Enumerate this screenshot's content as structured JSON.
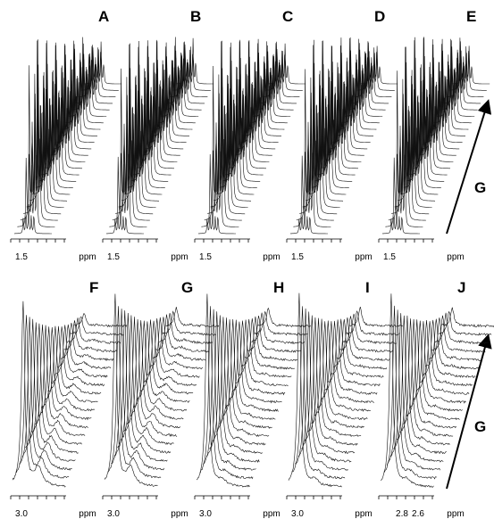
{
  "panels": [
    {
      "label": "A",
      "ticks": [
        "1.5"
      ],
      "unit": "ppm"
    },
    {
      "label": "B",
      "ticks": [
        "1.5"
      ],
      "unit": "ppm"
    },
    {
      "label": "C",
      "ticks": [
        "1.5"
      ],
      "unit": "ppm"
    },
    {
      "label": "D",
      "ticks": [
        "1.5"
      ],
      "unit": "ppm"
    },
    {
      "label": "E",
      "ticks": [
        "1.5"
      ],
      "unit": "ppm"
    },
    {
      "label": "F",
      "ticks": [
        "3.0"
      ],
      "unit": "ppm"
    },
    {
      "label": "G",
      "ticks": [
        "3.0"
      ],
      "unit": "ppm"
    },
    {
      "label": "H",
      "ticks": [
        "3.0"
      ],
      "unit": "ppm"
    },
    {
      "label": "I",
      "ticks": [
        "3.0"
      ],
      "unit": "ppm"
    },
    {
      "label": "J",
      "ticks": [
        "2.8",
        "2.6"
      ],
      "unit": "ppm"
    }
  ],
  "arrows": [
    {
      "label": "G"
    },
    {
      "label": "G"
    }
  ]
}
